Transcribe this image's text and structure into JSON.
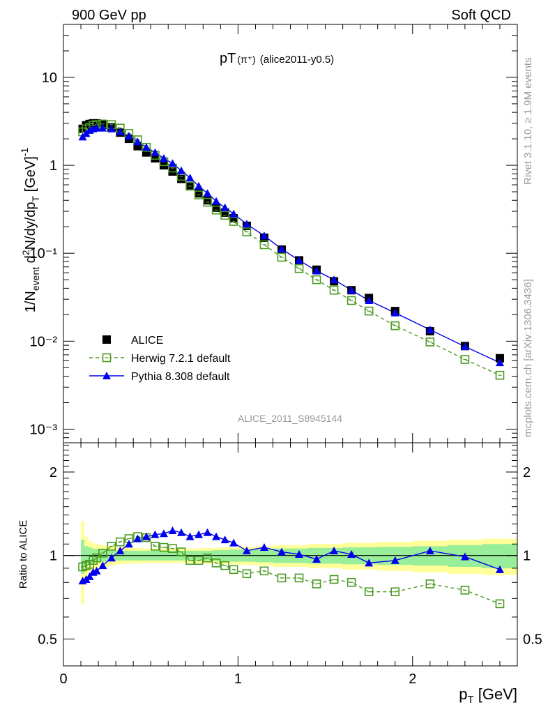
{
  "header": {
    "left": "900 GeV pp",
    "right": "Soft QCD"
  },
  "plot_title": {
    "main": "pT",
    "sub": "(π⁺)",
    "tag": "(alice2011-y0.5)"
  },
  "side_text": {
    "rivet": "Rivet 3.1.10, ≥ 1.9M events",
    "mcplots": "mcplots.cern.ch [arXiv:1306.3436]"
  },
  "analysis_label": "ALICE_2011_S8945144",
  "x_axis_label": "p",
  "x_axis_label_sub": "T",
  "x_axis_label_unit": " [GeV]",
  "y_axis_label": "1/N_event d²N/dy/dp_T [GeV]⁻¹",
  "ratio_y_label": "Ratio to ALICE",
  "legend": [
    {
      "label": "ALICE",
      "marker": "square-filled",
      "color": "#000000"
    },
    {
      "label": "Herwig 7.2.1 default",
      "marker": "square-open",
      "color": "#4c9a22",
      "dashed": true
    },
    {
      "label": "Pythia 8.308 default",
      "marker": "triangle",
      "color": "#0000ee"
    }
  ],
  "chart_data": [
    {
      "type": "scatter",
      "panel": "main",
      "xlabel": "pT [GeV]",
      "ylabel": "1/Nevent d2N/dy/dpT [GeV]^-1",
      "log_y": true,
      "xlim": [
        0,
        2.6
      ],
      "ylim": [
        0.0007,
        40
      ],
      "x_ticks": [
        "0",
        "1",
        "2"
      ],
      "y_ticks": [
        "10⁻³",
        "10⁻²",
        "10⁻¹",
        "1",
        "10"
      ],
      "series": [
        {
          "name": "ALICE",
          "x": [
            0.11,
            0.13,
            0.15,
            0.17,
            0.19,
            0.225,
            0.275,
            0.325,
            0.375,
            0.425,
            0.475,
            0.525,
            0.575,
            0.625,
            0.675,
            0.725,
            0.775,
            0.825,
            0.875,
            0.925,
            0.975,
            1.05,
            1.15,
            1.25,
            1.35,
            1.45,
            1.55,
            1.65,
            1.75,
            1.9,
            2.1,
            2.3,
            2.5
          ],
          "y": [
            2.6,
            2.85,
            2.95,
            3.0,
            3.0,
            2.9,
            2.7,
            2.35,
            2.0,
            1.65,
            1.4,
            1.2,
            1.0,
            0.85,
            0.7,
            0.58,
            0.48,
            0.4,
            0.33,
            0.29,
            0.25,
            0.205,
            0.15,
            0.11,
            0.083,
            0.065,
            0.048,
            0.038,
            0.031,
            0.022,
            0.013,
            0.0088,
            0.0064
          ]
        },
        {
          "name": "Herwig 7.2.1 default",
          "x": [
            0.11,
            0.13,
            0.15,
            0.17,
            0.19,
            0.225,
            0.275,
            0.325,
            0.375,
            0.425,
            0.475,
            0.525,
            0.575,
            0.625,
            0.675,
            0.725,
            0.775,
            0.825,
            0.875,
            0.925,
            0.975,
            1.05,
            1.15,
            1.25,
            1.35,
            1.45,
            1.55,
            1.65,
            1.75,
            1.9,
            2.1,
            2.3,
            2.5
          ],
          "y": [
            2.4,
            2.6,
            2.7,
            2.85,
            2.9,
            2.95,
            2.9,
            2.65,
            2.3,
            1.95,
            1.6,
            1.3,
            1.1,
            0.93,
            0.75,
            0.58,
            0.46,
            0.38,
            0.31,
            0.27,
            0.23,
            0.175,
            0.125,
            0.09,
            0.067,
            0.05,
            0.038,
            0.029,
            0.022,
            0.015,
            0.0098,
            0.0062,
            0.0041
          ]
        },
        {
          "name": "Pythia 8.308 default",
          "x": [
            0.11,
            0.13,
            0.15,
            0.17,
            0.19,
            0.225,
            0.275,
            0.325,
            0.375,
            0.425,
            0.475,
            0.525,
            0.575,
            0.625,
            0.675,
            0.725,
            0.775,
            0.825,
            0.875,
            0.925,
            0.975,
            1.05,
            1.15,
            1.25,
            1.35,
            1.45,
            1.55,
            1.65,
            1.75,
            1.9,
            2.1,
            2.3,
            2.5
          ],
          "y": [
            2.1,
            2.3,
            2.5,
            2.6,
            2.65,
            2.65,
            2.6,
            2.4,
            2.15,
            1.85,
            1.6,
            1.4,
            1.2,
            1.05,
            0.87,
            0.72,
            0.58,
            0.48,
            0.39,
            0.33,
            0.28,
            0.215,
            0.158,
            0.112,
            0.083,
            0.063,
            0.05,
            0.038,
            0.029,
            0.021,
            0.0135,
            0.0087,
            0.0057
          ]
        }
      ]
    },
    {
      "type": "line",
      "panel": "ratio",
      "ylabel": "Ratio to ALICE",
      "log_y": true,
      "xlim": [
        0,
        2.6
      ],
      "ylim": [
        0.4,
        2.55
      ],
      "y_ticks": [
        "0.5",
        "1",
        "2"
      ],
      "band_x": [
        0.1,
        0.12,
        0.14,
        0.16,
        0.18,
        0.2,
        0.25,
        0.3,
        0.35,
        0.4,
        0.45,
        0.5,
        0.55,
        0.6,
        0.65,
        0.7,
        0.75,
        0.8,
        0.85,
        0.9,
        0.95,
        1.0,
        1.1,
        1.2,
        1.3,
        1.4,
        1.5,
        1.6,
        1.7,
        1.8,
        2.0,
        2.2,
        2.4,
        2.6
      ],
      "band_green": [
        0.14,
        0.08,
        0.07,
        0.06,
        0.055,
        0.05,
        0.045,
        0.04,
        0.04,
        0.04,
        0.04,
        0.04,
        0.04,
        0.04,
        0.04,
        0.04,
        0.04,
        0.04,
        0.045,
        0.045,
        0.05,
        0.05,
        0.055,
        0.06,
        0.06,
        0.065,
        0.065,
        0.07,
        0.07,
        0.075,
        0.08,
        0.09,
        0.1
      ],
      "band_yellow": [
        0.33,
        0.17,
        0.13,
        0.11,
        0.1,
        0.09,
        0.08,
        0.07,
        0.065,
        0.065,
        0.06,
        0.06,
        0.06,
        0.06,
        0.06,
        0.06,
        0.06,
        0.065,
        0.065,
        0.07,
        0.07,
        0.075,
        0.08,
        0.09,
        0.09,
        0.1,
        0.1,
        0.11,
        0.11,
        0.12,
        0.13,
        0.14,
        0.15
      ],
      "series": [
        {
          "name": "Herwig 7.2.1 default",
          "x": [
            0.11,
            0.13,
            0.15,
            0.17,
            0.19,
            0.225,
            0.275,
            0.325,
            0.375,
            0.425,
            0.475,
            0.525,
            0.575,
            0.625,
            0.675,
            0.725,
            0.775,
            0.825,
            0.875,
            0.925,
            0.975,
            1.05,
            1.15,
            1.25,
            1.35,
            1.45,
            1.55,
            1.65,
            1.75,
            1.9,
            2.1,
            2.3,
            2.5
          ],
          "y": [
            0.91,
            0.92,
            0.93,
            0.96,
            0.98,
            1.02,
            1.08,
            1.12,
            1.15,
            1.17,
            1.16,
            1.08,
            1.07,
            1.06,
            1.03,
            0.96,
            0.96,
            0.98,
            0.94,
            0.92,
            0.89,
            0.86,
            0.88,
            0.83,
            0.83,
            0.79,
            0.82,
            0.8,
            0.74,
            0.74,
            0.79,
            0.75,
            0.67
          ]
        },
        {
          "name": "Pythia 8.308 default",
          "x": [
            0.11,
            0.13,
            0.15,
            0.17,
            0.19,
            0.225,
            0.275,
            0.325,
            0.375,
            0.425,
            0.475,
            0.525,
            0.575,
            0.625,
            0.675,
            0.725,
            0.775,
            0.825,
            0.875,
            0.925,
            0.975,
            1.05,
            1.15,
            1.25,
            1.35,
            1.45,
            1.55,
            1.65,
            1.75,
            1.9,
            2.1,
            2.3,
            2.5
          ],
          "y": [
            0.81,
            0.82,
            0.84,
            0.87,
            0.88,
            0.92,
            0.98,
            1.04,
            1.1,
            1.15,
            1.17,
            1.19,
            1.2,
            1.23,
            1.21,
            1.17,
            1.19,
            1.21,
            1.17,
            1.14,
            1.11,
            1.04,
            1.07,
            1.03,
            1.01,
            0.97,
            1.04,
            1.01,
            0.94,
            0.96,
            1.04,
            0.99,
            0.89
          ]
        }
      ]
    }
  ]
}
